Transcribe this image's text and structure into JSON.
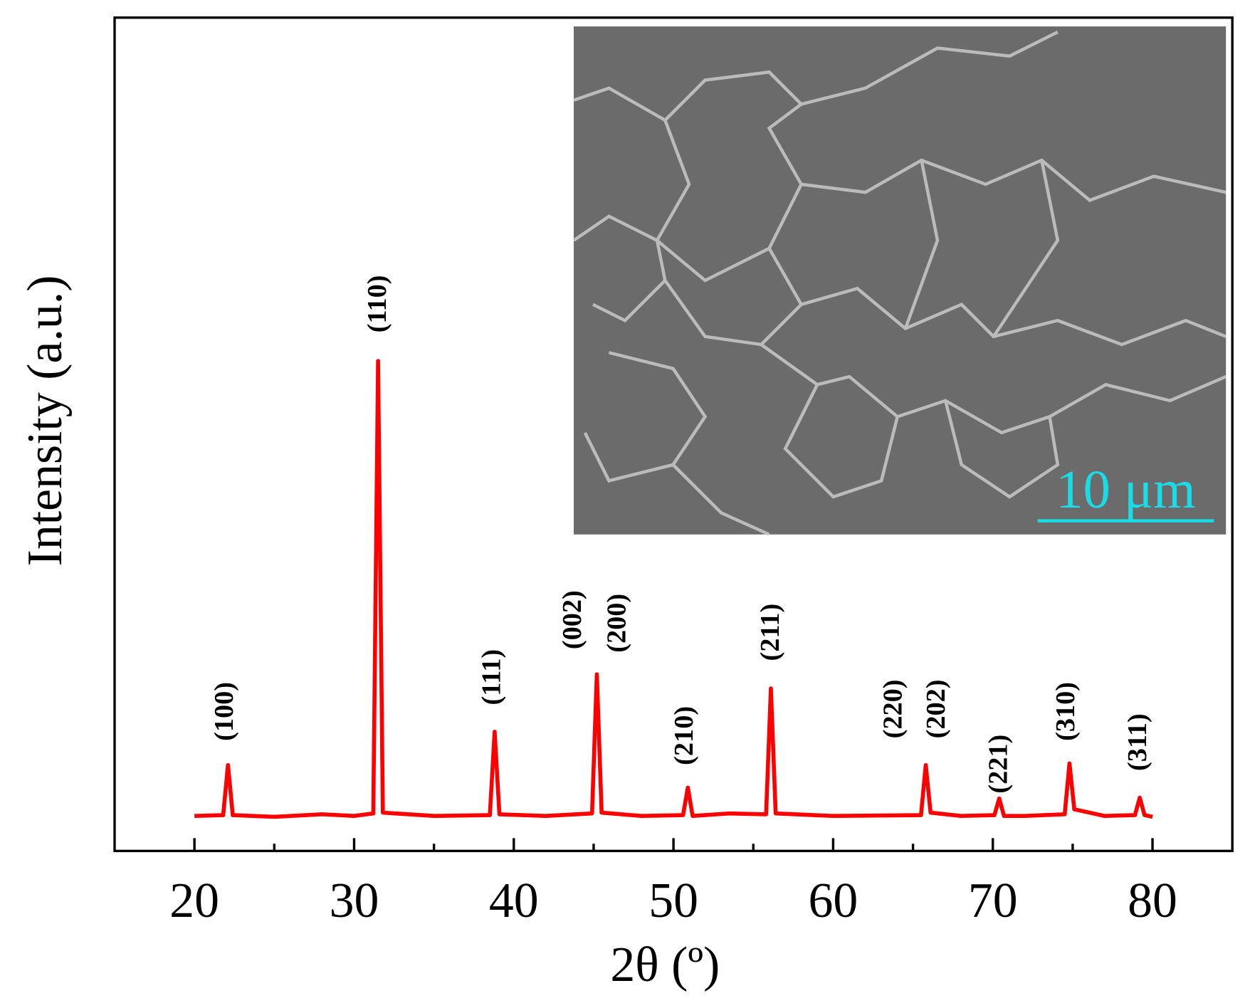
{
  "chart_data": {
    "type": "line",
    "x_label": "2θ (º)",
    "y_label": "Intensity (a.u.)",
    "xlim": [
      15,
      85
    ],
    "ylim": [
      0,
      100
    ],
    "xticks": [
      20,
      30,
      40,
      50,
      60,
      70,
      80
    ],
    "xminorticks": [
      25,
      35,
      45,
      55,
      65,
      75
    ],
    "series": [
      {
        "color": "#ff0000",
        "x": [
          20,
          21.8,
          22.1,
          22.4,
          25,
          28,
          30,
          31.2,
          31.5,
          31.8,
          35,
          38.5,
          38.8,
          39.1,
          42,
          44.9,
          45.2,
          45.5,
          48,
          50.6,
          50.9,
          51.2,
          53.5,
          55.8,
          56.1,
          56.4,
          60,
          65.5,
          65.8,
          66.1,
          68,
          70.1,
          70.4,
          70.7,
          72,
          74.5,
          74.8,
          75.1,
          77,
          78.9,
          79.2,
          79.5,
          80
        ],
        "values": [
          4.2,
          4.3,
          10.3,
          4.3,
          4.1,
          4.4,
          4.2,
          4.5,
          58.8,
          4.6,
          4.2,
          4.3,
          14.3,
          4.4,
          4.2,
          4.5,
          21.2,
          4.6,
          4.2,
          4.3,
          7.6,
          4.2,
          4.5,
          4.4,
          19.5,
          4.5,
          4.2,
          4.3,
          10.3,
          4.6,
          4.2,
          4.3,
          6.3,
          4.2,
          4.2,
          4.4,
          10.5,
          5.0,
          4.2,
          4.3,
          6.4,
          4.3,
          4.1
        ]
      }
    ],
    "annotations": [
      {
        "text": "(100)",
        "x": 22.0,
        "y": 13.2
      },
      {
        "text": "(110)",
        "x": 31.6,
        "y": 62.2
      },
      {
        "text": "(111)",
        "x": 38.75,
        "y": 17.5
      },
      {
        "text": "(002)",
        "x": 43.8,
        "y": 24.2
      },
      {
        "text": "(200)",
        "x": 46.6,
        "y": 23.8
      },
      {
        "text": "(210)",
        "x": 50.8,
        "y": 10.3
      },
      {
        "text": "(211)",
        "x": 56.2,
        "y": 22.8
      },
      {
        "text": "(220)",
        "x": 63.9,
        "y": 13.5
      },
      {
        "text": "(202)",
        "x": 66.6,
        "y": 13.5
      },
      {
        "text": "(221)",
        "x": 70.5,
        "y": 6.9
      },
      {
        "text": "(310)",
        "x": 74.7,
        "y": 13.2
      },
      {
        "text": "(311)",
        "x": 79.2,
        "y": 9.6
      }
    ],
    "inset": {
      "scale_bar_label": "10 μm"
    }
  }
}
